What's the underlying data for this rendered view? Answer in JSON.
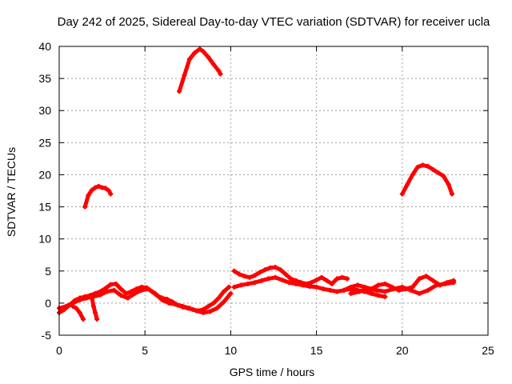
{
  "chart_data": {
    "type": "scatter",
    "title": "Day 242 of 2025, Sidereal Day-to-day VTEC variation (SDTVAR) for receiver ucla",
    "xlabel": "GPS time / hours",
    "ylabel": "SDTVAR / TECUs",
    "xlim": [
      0,
      25
    ],
    "ylim": [
      -5,
      40
    ],
    "xticks": [
      0,
      5,
      10,
      15,
      20,
      25
    ],
    "yticks": [
      -5,
      0,
      5,
      10,
      15,
      20,
      25,
      30,
      35,
      40
    ],
    "grid": true,
    "marker_color": "#ff0000",
    "series": [
      {
        "name": "arc-early-high",
        "x": [
          1.5,
          1.7,
          1.9,
          2.1,
          2.3,
          2.5,
          2.7,
          2.9,
          3.0
        ],
        "y": [
          15.0,
          16.8,
          17.6,
          18.0,
          18.2,
          18.0,
          17.9,
          17.5,
          17.0
        ]
      },
      {
        "name": "arc-morning-peak",
        "x": [
          7.0,
          7.3,
          7.6,
          7.9,
          8.2,
          8.4,
          8.7,
          9.0,
          9.3,
          9.4
        ],
        "y": [
          33.0,
          35.5,
          38.0,
          39.0,
          39.6,
          39.2,
          38.3,
          37.2,
          36.2,
          35.7
        ]
      },
      {
        "name": "arc-evening-high",
        "x": [
          20.0,
          20.3,
          20.6,
          20.9,
          21.2,
          21.5,
          21.8,
          22.1,
          22.4,
          22.7,
          22.9
        ],
        "y": [
          17.0,
          18.5,
          20.0,
          21.2,
          21.5,
          21.3,
          20.8,
          20.3,
          19.8,
          18.5,
          17.0
        ]
      },
      {
        "name": "low-band-a",
        "x": [
          0.0,
          0.3,
          0.6,
          0.9,
          1.2,
          1.5,
          1.8,
          2.1,
          2.4,
          2.7,
          3.0,
          3.3,
          3.6,
          3.9,
          4.2,
          4.5,
          4.8,
          5.1,
          5.4,
          5.7,
          6.0,
          6.3,
          6.6,
          6.9,
          7.2,
          7.5,
          7.8,
          8.1,
          8.4,
          8.7,
          9.0,
          9.3,
          9.6,
          9.9
        ],
        "y": [
          -1.5,
          -1.0,
          -0.3,
          0.4,
          0.8,
          1.0,
          1.2,
          1.5,
          1.8,
          2.3,
          2.9,
          3.0,
          2.2,
          1.5,
          1.8,
          2.2,
          2.5,
          2.4,
          1.8,
          1.2,
          0.8,
          0.6,
          0.2,
          -0.3,
          -0.6,
          -0.8,
          -1.0,
          -1.2,
          -1.0,
          -0.5,
          0.0,
          0.8,
          1.8,
          2.5
        ]
      },
      {
        "name": "low-band-b",
        "x": [
          0.0,
          0.4,
          0.8,
          1.2,
          1.6,
          2.0,
          2.4,
          2.8,
          3.2,
          3.6,
          4.0,
          4.4,
          4.8,
          5.2,
          5.6,
          6.0,
          6.4,
          6.8,
          7.2,
          7.6,
          8.0,
          8.4,
          8.8,
          9.2,
          9.6,
          10.0
        ],
        "y": [
          -0.8,
          -0.5,
          0.0,
          0.5,
          0.8,
          1.0,
          1.3,
          1.8,
          2.0,
          1.2,
          0.8,
          1.5,
          2.0,
          2.2,
          1.5,
          0.5,
          0.0,
          -0.2,
          -0.5,
          -0.8,
          -1.2,
          -1.5,
          -1.3,
          -0.8,
          0.2,
          1.5
        ]
      },
      {
        "name": "dip-near-one",
        "x": [
          0.8,
          1.0,
          1.2,
          1.4
        ],
        "y": [
          -0.5,
          -0.8,
          -1.5,
          -2.5
        ]
      },
      {
        "name": "dip-near-two",
        "x": [
          1.9,
          2.0,
          2.1,
          2.2
        ],
        "y": [
          1.0,
          -0.5,
          -1.5,
          -2.5
        ]
      },
      {
        "name": "mid-band-a",
        "x": [
          10.2,
          10.5,
          10.8,
          11.1,
          11.4,
          11.7,
          12.0,
          12.3,
          12.6,
          12.9,
          13.2,
          13.5,
          13.8,
          14.1,
          14.4,
          14.7,
          15.0,
          15.3,
          15.6,
          15.9,
          16.2,
          16.5,
          16.8
        ],
        "y": [
          5.0,
          4.5,
          4.2,
          4.0,
          4.3,
          4.8,
          5.2,
          5.5,
          5.6,
          5.2,
          4.5,
          3.8,
          3.5,
          3.2,
          3.0,
          3.2,
          3.6,
          4.0,
          3.5,
          3.0,
          3.8,
          4.0,
          3.8
        ]
      },
      {
        "name": "mid-band-b",
        "x": [
          10.2,
          10.6,
          11.0,
          11.4,
          11.8,
          12.2,
          12.6,
          13.0,
          13.4,
          13.8,
          14.2,
          14.6,
          15.0,
          15.4,
          15.8,
          16.2,
          16.6,
          17.0,
          17.4,
          17.8,
          18.2,
          18.6,
          19.0
        ],
        "y": [
          2.5,
          2.8,
          3.0,
          3.2,
          3.5,
          3.8,
          4.0,
          3.6,
          3.2,
          3.0,
          2.8,
          2.6,
          2.5,
          2.2,
          2.0,
          1.8,
          2.0,
          2.2,
          2.0,
          1.8,
          1.5,
          1.2,
          1.0
        ]
      },
      {
        "name": "late-band",
        "x": [
          16.6,
          17.0,
          17.4,
          17.8,
          18.2,
          18.6,
          19.0,
          19.4,
          19.8,
          20.2,
          20.6,
          21.0,
          21.4,
          21.8,
          22.2,
          22.6,
          23.0
        ],
        "y": [
          2.0,
          2.5,
          2.8,
          2.5,
          2.2,
          2.8,
          3.0,
          2.5,
          2.0,
          2.2,
          2.5,
          3.8,
          4.2,
          3.5,
          2.8,
          3.2,
          3.5
        ]
      },
      {
        "name": "late-band-b",
        "x": [
          17.0,
          17.5,
          18.0,
          18.5,
          19.0,
          19.5,
          20.0,
          20.5,
          21.0,
          21.5,
          22.0,
          22.5,
          23.0
        ],
        "y": [
          1.5,
          1.8,
          2.2,
          2.0,
          1.8,
          2.2,
          2.5,
          2.0,
          1.5,
          2.0,
          2.8,
          3.0,
          3.2
        ]
      }
    ]
  }
}
